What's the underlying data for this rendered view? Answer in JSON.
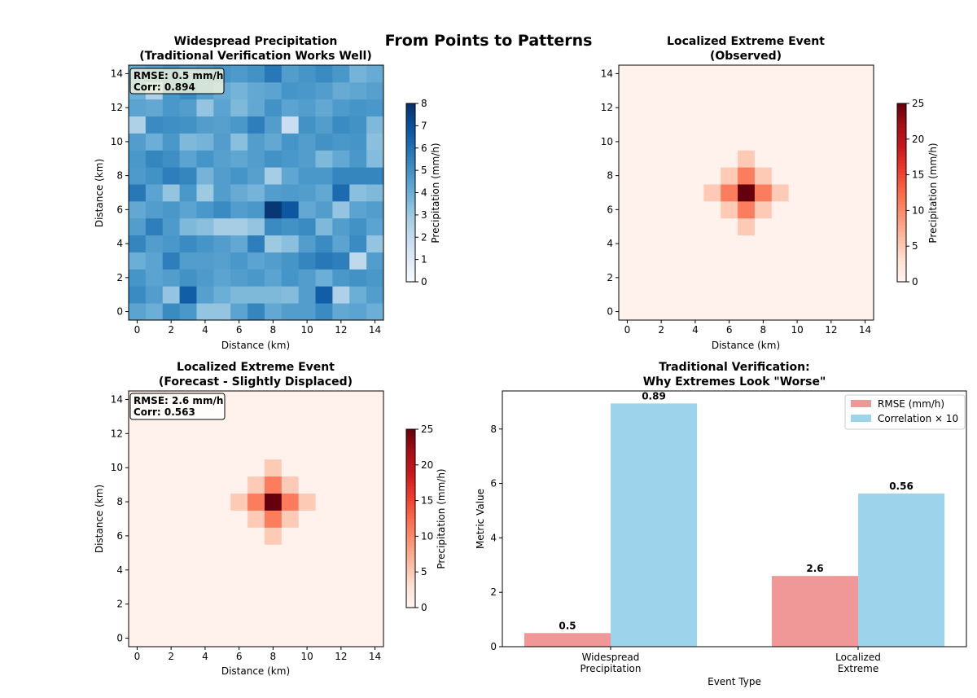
{
  "figure": {
    "suptitle": "From Points to Patterns"
  },
  "chart_data": [
    {
      "id": "p1",
      "type": "heatmap",
      "title": "Widespread Precipitation",
      "subtitle": "(Traditional Verification Works Well)",
      "xlabel": "Distance (km)",
      "ylabel": "Distance (km)",
      "xticks": [
        "0",
        "2",
        "4",
        "6",
        "8",
        "10",
        "12",
        "14"
      ],
      "yticks": [
        "0",
        "2",
        "4",
        "6",
        "8",
        "10",
        "12",
        "14"
      ],
      "colormap": "Blues",
      "colorbar": {
        "label": "Precipitation (mm/h)",
        "range": [
          0,
          8
        ],
        "ticks": [
          "0",
          "1",
          "2",
          "3",
          "4",
          "5",
          "6",
          "7",
          "8"
        ]
      },
      "annotation": [
        "RMSE: 0.5 mm/h",
        "Corr: 0.894"
      ],
      "grid_rows_top_to_bottom": [
        [
          4.2,
          4.5,
          4.8,
          4.4,
          4.6,
          4.9,
          4.7,
          5.0,
          5.8,
          4.6,
          4.9,
          5.2,
          4.8,
          3.8,
          4.1
        ],
        [
          4.0,
          2.6,
          4.8,
          5.2,
          4.6,
          4.1,
          3.8,
          4.2,
          4.4,
          4.9,
          4.8,
          4.6,
          4.1,
          4.3,
          4.5
        ],
        [
          4.4,
          4.2,
          4.8,
          4.6,
          3.2,
          4.4,
          3.6,
          4.2,
          5.0,
          4.4,
          4.6,
          4.2,
          4.7,
          4.9,
          4.8
        ],
        [
          2.6,
          5.2,
          5.1,
          5.0,
          4.6,
          4.5,
          4.8,
          5.6,
          4.6,
          1.8,
          5.0,
          4.6,
          5.2,
          5.0,
          3.6
        ],
        [
          4.6,
          4.0,
          4.8,
          3.6,
          3.8,
          4.6,
          3.4,
          4.6,
          4.2,
          4.9,
          4.6,
          5.0,
          4.8,
          4.9,
          3.4
        ],
        [
          4.8,
          5.4,
          5.1,
          4.4,
          4.9,
          4.5,
          4.3,
          4.6,
          5.0,
          4.8,
          4.6,
          3.6,
          4.2,
          4.8,
          3.5
        ],
        [
          4.7,
          5.0,
          5.6,
          5.4,
          3.8,
          4.6,
          4.9,
          4.5,
          2.8,
          4.3,
          4.8,
          4.8,
          5.4,
          5.4,
          5.4
        ],
        [
          5.8,
          4.4,
          3.2,
          4.8,
          3.0,
          4.6,
          4.1,
          3.8,
          4.6,
          4.7,
          4.6,
          4.2,
          6.2,
          3.4,
          3.6
        ],
        [
          4.2,
          4.6,
          4.8,
          4.4,
          4.8,
          5.2,
          4.6,
          4.8,
          7.8,
          6.8,
          4.2,
          4.6,
          3.2,
          4.4,
          4.6
        ],
        [
          4.6,
          5.6,
          4.7,
          3.6,
          3.4,
          2.8,
          2.8,
          3.2,
          5.2,
          5.0,
          5.2,
          3.6,
          4.6,
          5.0,
          4.4
        ],
        [
          5.4,
          4.6,
          4.8,
          5.2,
          4.9,
          4.6,
          4.2,
          5.6,
          3.0,
          3.4,
          4.6,
          5.2,
          4.4,
          5.2,
          3.2
        ],
        [
          4.0,
          4.4,
          5.6,
          4.6,
          4.6,
          4.5,
          4.8,
          4.4,
          4.6,
          4.9,
          5.4,
          5.8,
          5.6,
          2.2,
          4.6
        ],
        [
          4.9,
          4.4,
          4.6,
          5.0,
          4.7,
          4.4,
          4.6,
          4.8,
          4.4,
          4.9,
          4.6,
          4.0,
          4.8,
          5.0,
          4.8
        ],
        [
          5.2,
          4.6,
          3.2,
          6.6,
          4.5,
          4.0,
          3.6,
          3.6,
          3.6,
          3.5,
          4.6,
          6.6,
          2.6,
          4.0,
          4.6
        ],
        [
          4.4,
          4.0,
          5.2,
          4.8,
          3.2,
          3.2,
          4.4,
          5.4,
          4.2,
          4.6,
          4.6,
          5.2,
          4.2,
          4.4,
          4.0
        ]
      ]
    },
    {
      "id": "p2",
      "type": "heatmap",
      "title": "Localized Extreme Event",
      "subtitle": "(Observed)",
      "xlabel": "Distance (km)",
      "ylabel": "",
      "xticks": [
        "0",
        "2",
        "4",
        "6",
        "8",
        "10",
        "12",
        "14"
      ],
      "yticks": [
        "0",
        "2",
        "4",
        "6",
        "8",
        "10",
        "12",
        "14"
      ],
      "colormap": "Reds",
      "colorbar": {
        "label": "Precipitation (mm/h)",
        "range": [
          0,
          25
        ],
        "ticks": [
          "0",
          "5",
          "10",
          "15",
          "20",
          "25"
        ]
      },
      "grid_size": 15,
      "background": 0.4,
      "peak": {
        "x": 7,
        "y": 7,
        "value": 25
      },
      "ring1_value": 11,
      "ring2_value": 5
    },
    {
      "id": "p3",
      "type": "heatmap",
      "title": "Localized Extreme Event",
      "subtitle": "(Forecast - Slightly Displaced)",
      "xlabel": "Distance (km)",
      "ylabel": "Distance (km)",
      "xticks": [
        "0",
        "2",
        "4",
        "6",
        "8",
        "10",
        "12",
        "14"
      ],
      "yticks": [
        "0",
        "2",
        "4",
        "6",
        "8",
        "10",
        "12",
        "14"
      ],
      "colormap": "Reds",
      "colorbar": {
        "label": "Precipitation (mm/h)",
        "range": [
          0,
          25
        ],
        "ticks": [
          "0",
          "5",
          "10",
          "15",
          "20",
          "25"
        ]
      },
      "annotation": [
        "RMSE: 2.6 mm/h",
        "Corr: 0.563"
      ],
      "grid_size": 15,
      "background": 0.4,
      "peak": {
        "x": 8,
        "y": 8,
        "value": 25
      },
      "ring1_value": 11,
      "ring2_value": 5
    },
    {
      "id": "p4",
      "type": "bar",
      "title": "Traditional Verification:",
      "subtitle": "Why Extremes Look \"Worse\"",
      "xlabel": "Event Type",
      "ylabel": "Metric Value",
      "categories": [
        [
          "Widespread",
          "Precipitation"
        ],
        [
          "Localized",
          "Extreme"
        ]
      ],
      "ylim": [
        0,
        9.4
      ],
      "yticks": [
        0,
        2,
        4,
        6,
        8
      ],
      "legend_position": "top-right",
      "series": [
        {
          "name": "RMSE (mm/h)",
          "color": "#f09898",
          "values": [
            0.5,
            2.6
          ],
          "labels": [
            "0.5",
            "2.6"
          ]
        },
        {
          "name": "Correlation × 10",
          "color": "#9ed3ec",
          "values": [
            8.94,
            5.63
          ],
          "labels": [
            "0.89",
            "0.56"
          ]
        }
      ]
    }
  ]
}
